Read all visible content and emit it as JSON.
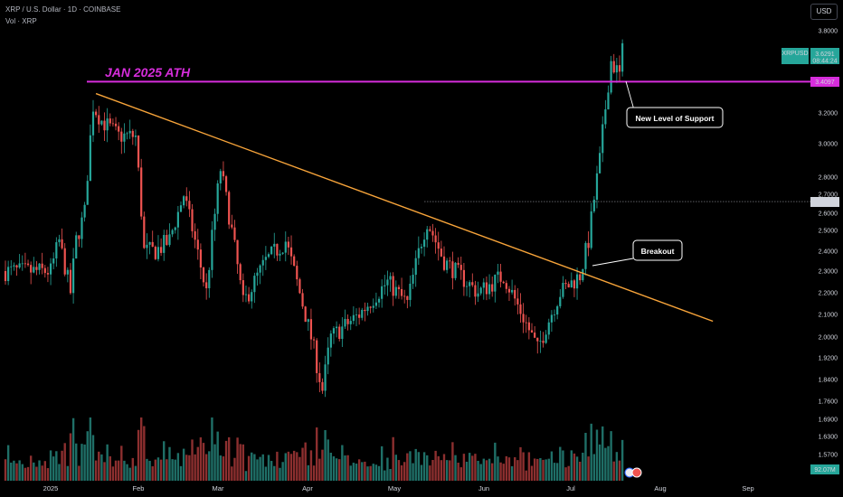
{
  "header": {
    "symbol_line": "XRP / U.S. Dollar · 1D · COINBASE",
    "vol_line": "Vol · XRP",
    "currency_button": "USD"
  },
  "colors": {
    "background": "#000000",
    "up": "#26a69a",
    "down": "#ef5350",
    "ath_line": "#d62ddb",
    "trendline": "#f7a43a",
    "last_price": "#26a69a"
  },
  "chart_data": {
    "type": "candlestick",
    "title": "",
    "y_axis": {
      "ticks": [
        "3.8000",
        "3.6000",
        "3.4000",
        "3.2000",
        "3.0000",
        "2.8000",
        "2.7000",
        "2.6000",
        "2.5000",
        "2.4000",
        "2.3000",
        "2.2000",
        "2.1000",
        "2.0000",
        "1.9200",
        "1.8400",
        "1.7600",
        "1.6900",
        "1.6300",
        "1.5700"
      ],
      "scale": "log",
      "ylim": [
        1.52,
        3.88
      ]
    },
    "x_axis": {
      "ticks": [
        "2025",
        "Feb",
        "Mar",
        "Apr",
        "May",
        "Jun",
        "Jul",
        "Aug",
        "Sep"
      ]
    },
    "price_tags": {
      "last": {
        "symbol": "XRPUSD",
        "price": "3.6291",
        "countdown": "08:44:24",
        "value": 3.6291
      },
      "ath": {
        "price": "3.4097",
        "value": 3.4097
      },
      "level": {
        "price": "2.6616",
        "value": 2.6616
      },
      "volume": "92.07M"
    },
    "annotations": {
      "ath_label": "JAN 2025 ATH",
      "support_label": "New Level of Support",
      "breakout_label": "Breakout"
    },
    "trendline": {
      "from": {
        "date": "2025-01-17",
        "price": 3.33
      },
      "to": {
        "date": "2025-08-23",
        "price": 2.07
      }
    },
    "candles_ohlc_keypoints": [
      {
        "date": "2025-01-01",
        "price": 2.3
      },
      {
        "date": "2025-01-04",
        "price": 2.45
      },
      {
        "date": "2025-01-08",
        "price": 2.2
      },
      {
        "date": "2025-01-10",
        "price": 2.45
      },
      {
        "date": "2025-01-13",
        "price": 2.6
      },
      {
        "date": "2025-01-16",
        "price": 3.25
      },
      {
        "date": "2025-01-19",
        "price": 3.15
      },
      {
        "date": "2025-01-25",
        "price": 3.05
      },
      {
        "date": "2025-01-31",
        "price": 3.05
      },
      {
        "date": "2025-02-03",
        "price": 2.4
      },
      {
        "date": "2025-02-07",
        "price": 2.4
      },
      {
        "date": "2025-02-12",
        "price": 2.45
      },
      {
        "date": "2025-02-17",
        "price": 2.7
      },
      {
        "date": "2025-02-25",
        "price": 2.2
      },
      {
        "date": "2025-03-02",
        "price": 2.85
      },
      {
        "date": "2025-03-10",
        "price": 2.15
      },
      {
        "date": "2025-03-18",
        "price": 2.35
      },
      {
        "date": "2025-03-25",
        "price": 2.45
      },
      {
        "date": "2025-04-01",
        "price": 2.1
      },
      {
        "date": "2025-04-07",
        "price": 1.8
      },
      {
        "date": "2025-04-10",
        "price": 2.0
      },
      {
        "date": "2025-04-20",
        "price": 2.1
      },
      {
        "date": "2025-04-30",
        "price": 2.25
      },
      {
        "date": "2025-05-07",
        "price": 2.15
      },
      {
        "date": "2025-05-12",
        "price": 2.45
      },
      {
        "date": "2025-05-14",
        "price": 2.55
      },
      {
        "date": "2025-05-20",
        "price": 2.35
      },
      {
        "date": "2025-06-01",
        "price": 2.2
      },
      {
        "date": "2025-06-10",
        "price": 2.28
      },
      {
        "date": "2025-06-22",
        "price": 1.95
      },
      {
        "date": "2025-06-30",
        "price": 2.2
      },
      {
        "date": "2025-07-07",
        "price": 2.28
      },
      {
        "date": "2025-07-10",
        "price": 2.45
      },
      {
        "date": "2025-07-14",
        "price": 2.9
      },
      {
        "date": "2025-07-17",
        "price": 3.4
      },
      {
        "date": "2025-07-18",
        "price": 3.55
      },
      {
        "date": "2025-07-21",
        "price": 3.45
      },
      {
        "date": "2025-07-22",
        "price": 3.63
      }
    ]
  }
}
